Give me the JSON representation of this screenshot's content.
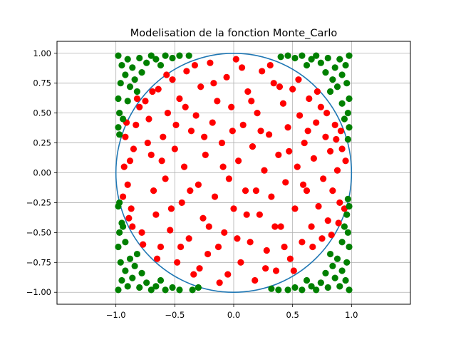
{
  "chart_data": {
    "type": "scatter",
    "title": "Modelisation de la fonction Monte_Carlo",
    "xlabel": "",
    "ylabel": "",
    "xlim": [
      -1.5,
      1.5
    ],
    "ylim": [
      -1.1,
      1.1
    ],
    "x_ticks": [
      "−1.0",
      "−0.5",
      "0.0",
      "0.5",
      "1.0"
    ],
    "x_tick_values": [
      -1.0,
      -0.5,
      0.0,
      0.5,
      1.0
    ],
    "y_ticks": [
      "−1.00",
      "−0.75",
      "−0.50",
      "−0.25",
      "0.00",
      "0.25",
      "0.50",
      "0.75",
      "1.00"
    ],
    "y_tick_values": [
      -1.0,
      -0.75,
      -0.5,
      -0.25,
      0.0,
      0.25,
      0.5,
      0.75,
      1.0
    ],
    "grid": true,
    "circle": {
      "center": [
        0,
        0
      ],
      "radius": 1.0,
      "color": "#1f77b4"
    },
    "series": [
      {
        "color": "#ff0000",
        "points": [
          [
            -0.92,
            0.3
          ],
          [
            -0.88,
            0.1
          ],
          [
            -0.85,
            0.2
          ],
          [
            -0.9,
            -0.1
          ],
          [
            -0.87,
            -0.3
          ],
          [
            -0.83,
            0.4
          ],
          [
            -0.8,
            0.55
          ],
          [
            -0.78,
            -0.5
          ],
          [
            -0.75,
            0.6
          ],
          [
            -0.72,
            0.45
          ],
          [
            -0.7,
            0.15
          ],
          [
            -0.68,
            -0.15
          ],
          [
            -0.66,
            -0.35
          ],
          [
            -0.64,
            0.7
          ],
          [
            -0.62,
            -0.62
          ],
          [
            -0.6,
            0.3
          ],
          [
            -0.58,
            -0.05
          ],
          [
            -0.56,
            0.5
          ],
          [
            -0.54,
            -0.48
          ],
          [
            -0.52,
            0.78
          ],
          [
            -0.5,
            0.2
          ],
          [
            -0.48,
            -0.75
          ],
          [
            -0.46,
            0.62
          ],
          [
            -0.44,
            -0.25
          ],
          [
            -0.42,
            0.05
          ],
          [
            -0.4,
            0.85
          ],
          [
            -0.38,
            -0.55
          ],
          [
            -0.36,
            0.35
          ],
          [
            -0.34,
            -0.85
          ],
          [
            -0.32,
            0.48
          ],
          [
            -0.3,
            -0.1
          ],
          [
            -0.28,
            0.72
          ],
          [
            -0.26,
            -0.38
          ],
          [
            -0.24,
            0.15
          ],
          [
            -0.22,
            -0.68
          ],
          [
            -0.2,
            0.92
          ],
          [
            -0.18,
            0.42
          ],
          [
            -0.16,
            -0.2
          ],
          [
            -0.14,
            0.6
          ],
          [
            -0.12,
            -0.92
          ],
          [
            -0.1,
            0.25
          ],
          [
            -0.08,
            -0.5
          ],
          [
            -0.06,
            0.8
          ],
          [
            -0.04,
            -0.05
          ],
          [
            -0.02,
            0.55
          ],
          [
            0.0,
            -0.3
          ],
          [
            0.02,
            0.95
          ],
          [
            0.04,
            0.1
          ],
          [
            0.06,
            -0.75
          ],
          [
            0.08,
            0.4
          ],
          [
            0.1,
            -0.15
          ],
          [
            0.12,
            0.68
          ],
          [
            0.14,
            -0.58
          ],
          [
            0.16,
            0.22
          ],
          [
            0.18,
            -0.9
          ],
          [
            0.2,
            0.5
          ],
          [
            0.22,
            -0.35
          ],
          [
            0.24,
            0.85
          ],
          [
            0.26,
            0.02
          ],
          [
            0.28,
            -0.65
          ],
          [
            0.3,
            0.32
          ],
          [
            0.32,
            -0.2
          ],
          [
            0.34,
            0.75
          ],
          [
            0.36,
            -0.82
          ],
          [
            0.38,
            0.15
          ],
          [
            0.4,
            -0.45
          ],
          [
            0.42,
            0.58
          ],
          [
            0.44,
            -0.08
          ],
          [
            0.46,
            0.38
          ],
          [
            0.48,
            -0.72
          ],
          [
            0.5,
            0.7
          ],
          [
            0.52,
            -0.3
          ],
          [
            0.54,
            0.05
          ],
          [
            0.56,
            0.48
          ],
          [
            0.58,
            -0.58
          ],
          [
            0.6,
            0.25
          ],
          [
            0.62,
            -0.15
          ],
          [
            0.64,
            0.62
          ],
          [
            0.66,
            -0.45
          ],
          [
            0.68,
            0.12
          ],
          [
            0.7,
            0.42
          ],
          [
            0.72,
            -0.28
          ],
          [
            0.74,
            0.55
          ],
          [
            0.76,
            -0.05
          ],
          [
            0.78,
            0.3
          ],
          [
            0.8,
            -0.4
          ],
          [
            0.82,
            0.18
          ],
          [
            0.84,
            -0.15
          ],
          [
            0.86,
            0.4
          ],
          [
            0.88,
            0.02
          ],
          [
            0.9,
            -0.25
          ],
          [
            0.92,
            0.2
          ],
          [
            0.94,
            -0.3
          ],
          [
            0.95,
            0.1
          ],
          [
            -0.94,
            -0.2
          ],
          [
            -0.93,
            0.05
          ],
          [
            -0.86,
            -0.45
          ],
          [
            -0.82,
            0.62
          ],
          [
            -0.77,
            -0.6
          ],
          [
            -0.73,
            0.25
          ],
          [
            -0.69,
            0.68
          ],
          [
            -0.65,
            -0.72
          ],
          [
            -0.61,
            0.1
          ],
          [
            -0.57,
            0.82
          ],
          [
            -0.53,
            -0.3
          ],
          [
            -0.49,
            0.4
          ],
          [
            -0.45,
            -0.62
          ],
          [
            -0.41,
            0.55
          ],
          [
            -0.37,
            -0.15
          ],
          [
            -0.33,
            0.9
          ],
          [
            -0.29,
            -0.8
          ],
          [
            -0.25,
            0.3
          ],
          [
            -0.21,
            -0.45
          ],
          [
            -0.17,
            0.75
          ],
          [
            -0.13,
            -0.62
          ],
          [
            -0.09,
            0.05
          ],
          [
            -0.05,
            -0.85
          ],
          [
            -0.01,
            0.35
          ],
          [
            0.03,
            -0.55
          ],
          [
            0.07,
            0.88
          ],
          [
            0.11,
            -0.35
          ],
          [
            0.15,
            0.6
          ],
          [
            0.19,
            -0.15
          ],
          [
            0.23,
            0.35
          ],
          [
            0.27,
            -0.8
          ],
          [
            0.31,
            0.9
          ],
          [
            0.35,
            -0.45
          ],
          [
            0.39,
            0.72
          ],
          [
            0.43,
            -0.62
          ],
          [
            0.47,
            0.18
          ],
          [
            0.51,
            -0.82
          ],
          [
            0.55,
            0.78
          ],
          [
            0.59,
            -0.1
          ],
          [
            0.63,
            0.35
          ],
          [
            0.67,
            -0.62
          ],
          [
            0.71,
            0.68
          ],
          [
            0.75,
            -0.55
          ],
          [
            0.79,
            0.5
          ],
          [
            0.83,
            -0.52
          ],
          [
            0.87,
            0.28
          ],
          [
            0.89,
            -0.42
          ],
          [
            0.91,
            0.35
          ],
          [
            -0.91,
            0.42
          ],
          [
            -0.89,
            -0.38
          ]
        ]
      },
      {
        "color": "#008000",
        "points": [
          [
            -0.98,
            0.98
          ],
          [
            -0.95,
            0.9
          ],
          [
            -0.92,
            0.82
          ],
          [
            -0.96,
            0.75
          ],
          [
            -0.98,
            0.62
          ],
          [
            -0.97,
            0.5
          ],
          [
            -0.94,
            0.45
          ],
          [
            -0.9,
            0.95
          ],
          [
            -0.86,
            0.88
          ],
          [
            -0.84,
            0.78
          ],
          [
            -0.8,
            0.96
          ],
          [
            -0.78,
            0.84
          ],
          [
            -0.74,
            0.92
          ],
          [
            -0.7,
            0.98
          ],
          [
            -0.66,
            0.95
          ],
          [
            -0.62,
            0.9
          ],
          [
            -0.58,
            0.98
          ],
          [
            -0.52,
            0.96
          ],
          [
            -0.46,
            0.98
          ],
          [
            -0.98,
            0.38
          ],
          [
            -0.97,
            0.32
          ],
          [
            -0.88,
            0.72
          ],
          [
            -0.82,
            0.68
          ],
          [
            -0.9,
            0.6
          ],
          [
            0.98,
            0.98
          ],
          [
            0.95,
            0.9
          ],
          [
            0.92,
            0.82
          ],
          [
            0.96,
            0.75
          ],
          [
            0.98,
            0.62
          ],
          [
            0.97,
            0.5
          ],
          [
            0.94,
            0.45
          ],
          [
            0.9,
            0.95
          ],
          [
            0.86,
            0.88
          ],
          [
            0.84,
            0.78
          ],
          [
            0.8,
            0.96
          ],
          [
            0.78,
            0.84
          ],
          [
            0.74,
            0.92
          ],
          [
            0.7,
            0.98
          ],
          [
            0.66,
            0.95
          ],
          [
            0.62,
            0.9
          ],
          [
            0.58,
            0.98
          ],
          [
            0.52,
            0.96
          ],
          [
            0.46,
            0.98
          ],
          [
            0.98,
            0.38
          ],
          [
            0.97,
            0.28
          ],
          [
            0.88,
            0.72
          ],
          [
            0.82,
            0.68
          ],
          [
            0.92,
            0.58
          ],
          [
            -0.98,
            -0.98
          ],
          [
            -0.95,
            -0.9
          ],
          [
            -0.92,
            -0.82
          ],
          [
            -0.96,
            -0.75
          ],
          [
            -0.98,
            -0.62
          ],
          [
            -0.97,
            -0.5
          ],
          [
            -0.94,
            -0.45
          ],
          [
            -0.9,
            -0.95
          ],
          [
            -0.86,
            -0.88
          ],
          [
            -0.84,
            -0.78
          ],
          [
            -0.8,
            -0.96
          ],
          [
            -0.78,
            -0.84
          ],
          [
            -0.74,
            -0.92
          ],
          [
            -0.7,
            -0.98
          ],
          [
            -0.66,
            -0.95
          ],
          [
            -0.62,
            -0.9
          ],
          [
            -0.58,
            -0.98
          ],
          [
            -0.52,
            -0.96
          ],
          [
            -0.46,
            -0.98
          ],
          [
            -0.98,
            -0.28
          ],
          [
            -0.97,
            -0.25
          ],
          [
            -0.88,
            -0.72
          ],
          [
            -0.82,
            -0.68
          ],
          [
            -0.92,
            -0.58
          ],
          [
            0.98,
            -0.98
          ],
          [
            0.95,
            -0.9
          ],
          [
            0.92,
            -0.82
          ],
          [
            0.96,
            -0.75
          ],
          [
            0.98,
            -0.62
          ],
          [
            0.97,
            -0.5
          ],
          [
            0.94,
            -0.45
          ],
          [
            0.9,
            -0.95
          ],
          [
            0.86,
            -0.88
          ],
          [
            0.84,
            -0.78
          ],
          [
            0.8,
            -0.96
          ],
          [
            0.78,
            -0.84
          ],
          [
            0.74,
            -0.92
          ],
          [
            0.7,
            -0.98
          ],
          [
            0.66,
            -0.95
          ],
          [
            0.62,
            -0.9
          ],
          [
            0.58,
            -0.98
          ],
          [
            0.52,
            -0.96
          ],
          [
            0.46,
            -0.98
          ],
          [
            0.98,
            -0.28
          ],
          [
            0.97,
            -0.22
          ],
          [
            0.88,
            -0.72
          ],
          [
            0.82,
            -0.68
          ],
          [
            0.92,
            -0.58
          ],
          [
            -0.35,
            -0.98
          ],
          [
            -0.3,
            -0.96
          ],
          [
            0.32,
            -0.97
          ],
          [
            0.38,
            -0.98
          ],
          [
            -0.38,
            0.98
          ],
          [
            0.4,
            0.97
          ],
          [
            0.96,
            -0.35
          ],
          [
            -0.95,
            -0.42
          ]
        ]
      }
    ]
  }
}
